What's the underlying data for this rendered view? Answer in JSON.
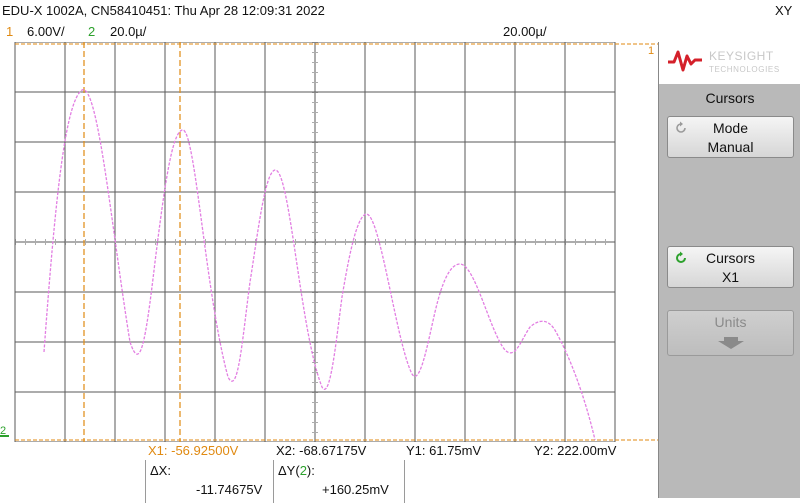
{
  "header": {
    "device_line": "EDU-X 1002A, CN58410451: Thu Apr 28 12:09:31 2022",
    "mode": "XY"
  },
  "scales": {
    "ch1_num": "1",
    "ch1_scale": "6.00V/",
    "ch2_num": "2",
    "ch2_scale": "20.0µ/",
    "timebase": "20.00µ/"
  },
  "markers": {
    "ch1_marker": "1",
    "ch2_marker": "2"
  },
  "panel": {
    "logo_text": "KEYSIGHT",
    "logo_sub": "TECHNOLOGIES",
    "title": "Cursors",
    "mode_label": "Mode",
    "mode_value": "Manual",
    "cursors_label": "Cursors",
    "cursors_value": "X1",
    "units_label": "Units"
  },
  "readout": {
    "x1": "X1: -56.92500V",
    "x2": "X2: -68.67175V",
    "y1": "Y1: 61.75mV",
    "y2": "Y2: 222.00mV"
  },
  "delta": {
    "dx_label": "ΔX:",
    "dx_value": "-11.74675V",
    "dy_label_a": "ΔY(",
    "dy_label_ch": "2",
    "dy_label_b": "):",
    "dy_value": "+160.25mV"
  },
  "colors": {
    "trace": "#e27ee2",
    "cursor": "#e08a12",
    "grid": "#5a5a5a",
    "ch2": "#2da12d"
  },
  "icons": [
    "keysight-logo-icon",
    "refresh-icon",
    "refresh-icon",
    "down-arrow-icon"
  ]
}
